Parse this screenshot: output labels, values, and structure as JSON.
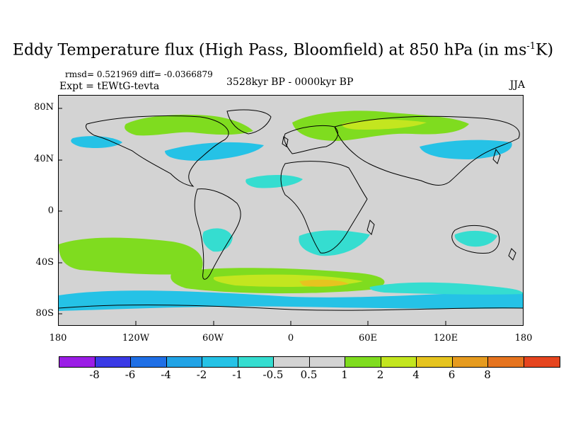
{
  "title": {
    "main": "Eddy Temperature flux (High Pass, Bloomfield) at 850 hPa (in ms",
    "sup": "-1",
    "tail": "K)"
  },
  "stats": "rmsd= 0.521969 diff= -0.0366879",
  "experiment": "Expt = tEWtG-tevta",
  "period": "3528kyr BP - 0000kyr BP",
  "season": "JJA",
  "map": {
    "lat_labels": [
      "80N",
      "40N",
      "0",
      "40S",
      "80S"
    ],
    "lon_labels": [
      "180",
      "120W",
      "60W",
      "0",
      "60E",
      "120E",
      "180"
    ],
    "background_color": "#d3d3d3"
  },
  "colorbar": {
    "colors": [
      "#9b1de6",
      "#3a3ae6",
      "#1f6fe6",
      "#21a3e6",
      "#25c2e6",
      "#35ddd0",
      "#d3d3d3",
      "#d3d3d3",
      "#7fdc1f",
      "#c3e61f",
      "#e6c41f",
      "#e69b1f",
      "#e6741f",
      "#e6451f"
    ],
    "labels": [
      "-8",
      "-6",
      "-4",
      "-2",
      "-1",
      "-0.5",
      "0.5",
      "1",
      "2",
      "4",
      "6",
      "8"
    ]
  }
}
